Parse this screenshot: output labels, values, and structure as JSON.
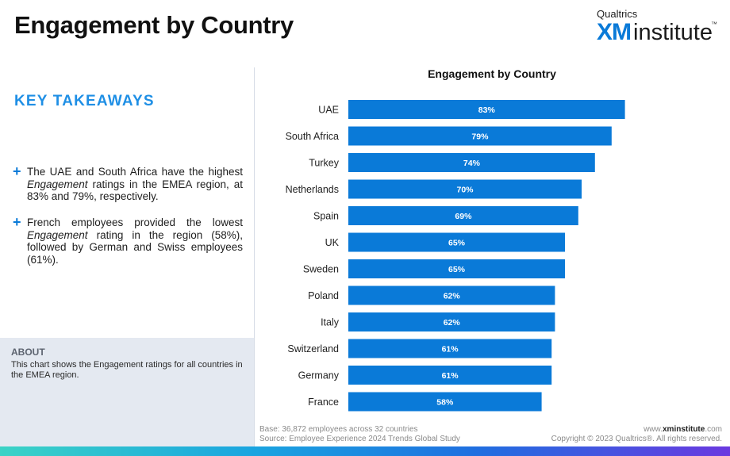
{
  "page": {
    "title": "Engagement by Country"
  },
  "logo": {
    "top_text": "Qualtrics",
    "xm": "XM",
    "word": "institute",
    "tm": "™"
  },
  "takeaways": {
    "heading": "KEY TAKEAWAYS",
    "bullets": [
      {
        "parts": [
          "The UAE and South Africa have the highest ",
          "Engagement",
          " ratings in the EMEA region, at 83% and 79%, respectively."
        ]
      },
      {
        "parts": [
          "French employees provided the lowest ",
          "Engagement",
          " rating in the region (58%), followed by German and Swiss employees (61%)."
        ]
      }
    ]
  },
  "about": {
    "heading": "ABOUT",
    "text": "This chart shows the Engagement ratings for all countries in the EMEA region."
  },
  "footer": {
    "base": "Base: 36,872 employees across 32 countries",
    "source": "Source: Employee Experience 2024 Trends Global Study",
    "url_prefix": "www.",
    "url_bold": "xminstitute",
    "url_suffix": ".com",
    "copyright": "Copyright © 2023 Qualtrics®. All rights reserved."
  },
  "colors": {
    "bar": "#0a7ad8",
    "accent": "#1f8fe5"
  },
  "chart_data": {
    "type": "bar",
    "orientation": "horizontal",
    "title": "Engagement by Country",
    "xlabel": "",
    "ylabel": "",
    "xlim": [
      0,
      100
    ],
    "grid": false,
    "categories": [
      "UAE",
      "South Africa",
      "Turkey",
      "Netherlands",
      "Spain",
      "UK",
      "Sweden",
      "Poland",
      "Italy",
      "Switzerland",
      "Germany",
      "France"
    ],
    "values": [
      83,
      79,
      74,
      70,
      69,
      65,
      65,
      62,
      62,
      61,
      61,
      58
    ],
    "labels": [
      "83%",
      "79%",
      "74%",
      "70%",
      "69%",
      "65%",
      "65%",
      "62%",
      "62%",
      "61%",
      "61%",
      "58%"
    ]
  }
}
